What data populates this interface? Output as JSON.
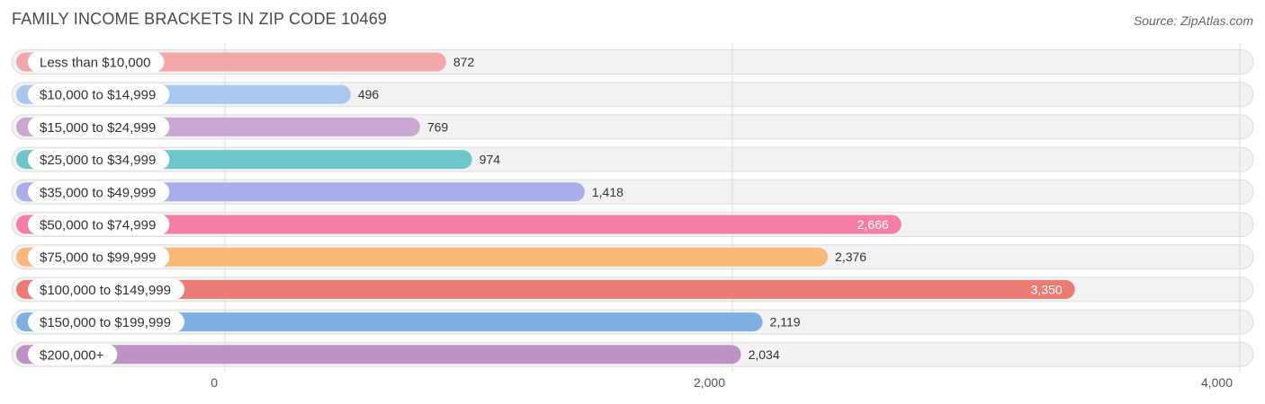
{
  "header": {
    "title": "FAMILY INCOME BRACKETS IN ZIP CODE 10469",
    "source": "Source: ZipAtlas.com"
  },
  "chart_data": {
    "type": "bar",
    "orientation": "horizontal",
    "title": "FAMILY INCOME BRACKETS IN ZIP CODE 10469",
    "categories": [
      "Less than $10,000",
      "$10,000 to $14,999",
      "$15,000 to $24,999",
      "$25,000 to $34,999",
      "$35,000 to $49,999",
      "$50,000 to $74,999",
      "$75,000 to $99,999",
      "$100,000 to $149,999",
      "$150,000 to $199,999",
      "$200,000+"
    ],
    "values": [
      872,
      496,
      769,
      974,
      1418,
      2666,
      2376,
      3350,
      2119,
      2034
    ],
    "value_labels": [
      "872",
      "496",
      "769",
      "974",
      "1,418",
      "2,666",
      "2,376",
      "3,350",
      "2,119",
      "2,034"
    ],
    "colors": [
      "#f2a8a8",
      "#a9c8ef",
      "#c9a9d4",
      "#6ec6cc",
      "#a9aeea",
      "#f57ea6",
      "#fbb87a",
      "#ec7b73",
      "#7fb0e4",
      "#be92c4"
    ],
    "x_ticks": [
      0,
      2000,
      4000
    ],
    "x_tick_labels": [
      "0",
      "2,000",
      "4,000"
    ],
    "xlim": [
      0,
      4000
    ],
    "grid": true,
    "legend": "none"
  }
}
